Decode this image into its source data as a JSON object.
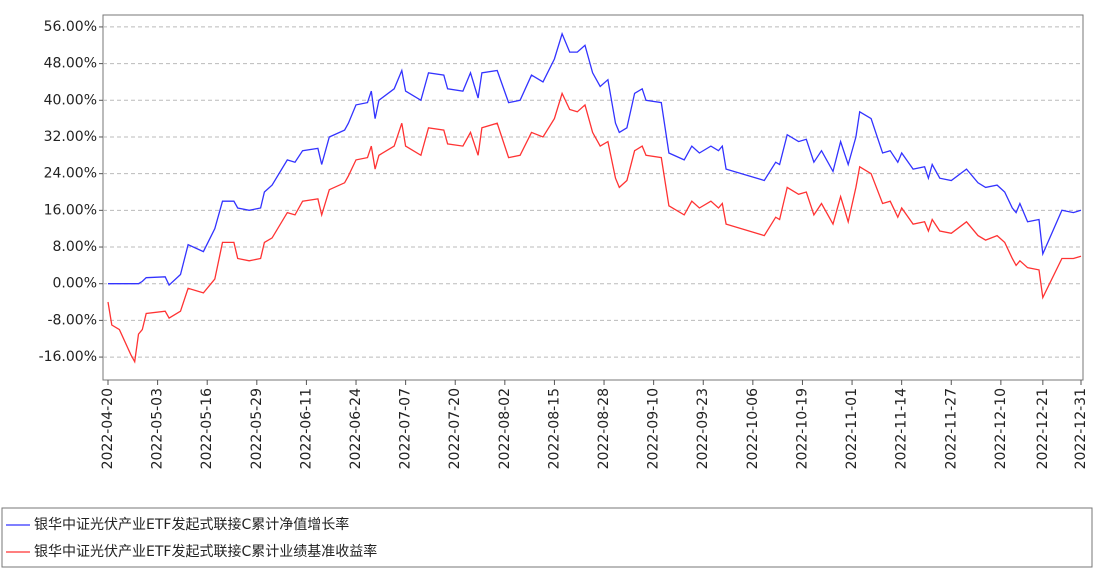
{
  "chart_data": {
    "type": "line",
    "x": [
      "2022-04-20",
      "2022-04-21",
      "2022-04-23",
      "2022-04-26",
      "2022-04-27",
      "2022-04-28",
      "2022-04-29",
      "2022-04-30",
      "2022-05-05",
      "2022-05-06",
      "2022-05-09",
      "2022-05-11",
      "2022-05-15",
      "2022-05-18",
      "2022-05-20",
      "2022-05-23",
      "2022-05-24",
      "2022-05-27",
      "2022-05-30",
      "2022-05-31",
      "2022-06-02",
      "2022-06-06",
      "2022-06-08",
      "2022-06-10",
      "2022-06-14",
      "2022-06-15",
      "2022-06-17",
      "2022-06-21",
      "2022-06-22",
      "2022-06-24",
      "2022-06-27",
      "2022-06-28",
      "2022-06-29",
      "2022-06-30",
      "2022-07-04",
      "2022-07-06",
      "2022-07-07",
      "2022-07-11",
      "2022-07-13",
      "2022-07-17",
      "2022-07-18",
      "2022-07-22",
      "2022-07-24",
      "2022-07-26",
      "2022-07-27",
      "2022-07-31",
      "2022-08-03",
      "2022-08-06",
      "2022-08-09",
      "2022-08-12",
      "2022-08-15",
      "2022-08-17",
      "2022-08-19",
      "2022-08-21",
      "2022-08-23",
      "2022-08-25",
      "2022-08-27",
      "2022-08-29",
      "2022-08-31",
      "2022-09-01",
      "2022-09-03",
      "2022-09-05",
      "2022-09-07",
      "2022-09-08",
      "2022-09-12",
      "2022-09-14",
      "2022-09-18",
      "2022-09-20",
      "2022-09-22",
      "2022-09-25",
      "2022-09-27",
      "2022-09-28",
      "2022-09-29",
      "2022-10-09",
      "2022-10-12",
      "2022-10-13",
      "2022-10-15",
      "2022-10-18",
      "2022-10-20",
      "2022-10-22",
      "2022-10-24",
      "2022-10-27",
      "2022-10-29",
      "2022-10-31",
      "2022-11-02",
      "2022-11-03",
      "2022-11-06",
      "2022-11-09",
      "2022-11-11",
      "2022-11-13",
      "2022-11-14",
      "2022-11-17",
      "2022-11-20",
      "2022-11-21",
      "2022-11-22",
      "2022-11-24",
      "2022-11-27",
      "2022-12-01",
      "2022-12-04",
      "2022-12-06",
      "2022-12-09",
      "2022-12-11",
      "2022-12-13",
      "2022-12-14",
      "2022-12-15",
      "2022-12-17",
      "2022-12-20",
      "2022-12-21",
      "2022-12-26",
      "2022-12-29",
      "2022-12-31"
    ],
    "series": [
      {
        "name": "银华中证光伏产业ETF发起式联接C累计净值增长率",
        "color": "#3333ff",
        "values": [
          0,
          0,
          0,
          0,
          0,
          0,
          0.5,
          1.3,
          1.5,
          -0.3,
          2,
          8.5,
          7,
          12,
          18,
          18,
          16.5,
          16,
          16.5,
          20,
          21.5,
          27,
          26.5,
          29,
          29.5,
          26,
          32,
          33.5,
          35,
          39,
          39.5,
          42,
          36,
          40,
          42.5,
          46.5,
          42,
          40,
          46,
          45.5,
          42.5,
          42,
          46,
          40.5,
          46,
          46.5,
          39.5,
          40,
          45.5,
          44,
          49,
          54.5,
          50.5,
          50.5,
          52,
          46,
          43,
          44.5,
          35,
          33,
          34,
          41.5,
          42.5,
          40,
          39.5,
          28.5,
          27,
          30,
          28.5,
          30,
          29,
          30,
          25,
          22.5,
          26.5,
          26,
          32.5,
          31,
          31.5,
          26.5,
          29,
          24.5,
          31,
          26,
          32,
          37.5,
          36,
          28.5,
          29,
          26.5,
          28.5,
          25,
          25.5,
          23,
          26,
          23,
          22.5,
          25,
          22,
          21,
          21.5,
          20,
          16.5,
          15.5,
          17.5,
          13.5,
          14,
          6.5,
          16,
          15.5,
          16
        ]
      },
      {
        "name": "银华中证光伏产业ETF发起式联接C累计业绩基准收益率",
        "color": "#ff3333",
        "values": [
          -4,
          -9,
          -10,
          -15.5,
          -17,
          -11,
          -10,
          -6.5,
          -6,
          -7.5,
          -6,
          -1,
          -2,
          1,
          9,
          9,
          5.5,
          5,
          5.5,
          9,
          10,
          15.5,
          15,
          18,
          18.5,
          15,
          20.5,
          22,
          23.5,
          27,
          27.5,
          30,
          25,
          28,
          30,
          35,
          30,
          28,
          34,
          33.5,
          30.5,
          30,
          33,
          28,
          34,
          35,
          27.5,
          28,
          33,
          32,
          36,
          41.5,
          38,
          37.5,
          39,
          33,
          30,
          31,
          23,
          21,
          22.5,
          29,
          30,
          28,
          27.5,
          17,
          15,
          18,
          16.5,
          18,
          16.5,
          17.5,
          13,
          10.5,
          14.5,
          14,
          21,
          19.5,
          20,
          15,
          17.5,
          13,
          19,
          13.5,
          21,
          25.5,
          24,
          17.5,
          18,
          14.5,
          16.5,
          13,
          13.5,
          11.5,
          14,
          11.5,
          11,
          13.5,
          10.5,
          9.5,
          10.5,
          9,
          5.5,
          4,
          5,
          3.5,
          3,
          -3,
          5.5,
          5.5,
          6
        ]
      }
    ],
    "xlim": [
      "2022-04-20",
      "2022-12-31"
    ],
    "xticks": [
      "2022-04-20",
      "2022-05-03",
      "2022-05-16",
      "2022-05-29",
      "2022-06-11",
      "2022-06-24",
      "2022-07-07",
      "2022-07-20",
      "2022-08-02",
      "2022-08-15",
      "2022-08-28",
      "2022-09-10",
      "2022-09-23",
      "2022-10-06",
      "2022-10-19",
      "2022-11-01",
      "2022-11-14",
      "2022-11-27",
      "2022-12-10",
      "2022-12-21",
      "2022-12-31"
    ],
    "ylim": [
      -21,
      58.6
    ],
    "yticks": [
      {
        "value": 56,
        "label": "56.00%"
      },
      {
        "value": 48,
        "label": "48.00%"
      },
      {
        "value": 40,
        "label": "40.00%"
      },
      {
        "value": 32,
        "label": "32.00%"
      },
      {
        "value": 24,
        "label": "24.00%"
      },
      {
        "value": 16,
        "label": "16.00%"
      },
      {
        "value": 8,
        "label": "8.00%"
      },
      {
        "value": 0,
        "label": "0.00%"
      },
      {
        "value": -8,
        "label": "-8.00%"
      },
      {
        "value": -16,
        "label": "-16.00%"
      }
    ],
    "grid": true
  }
}
